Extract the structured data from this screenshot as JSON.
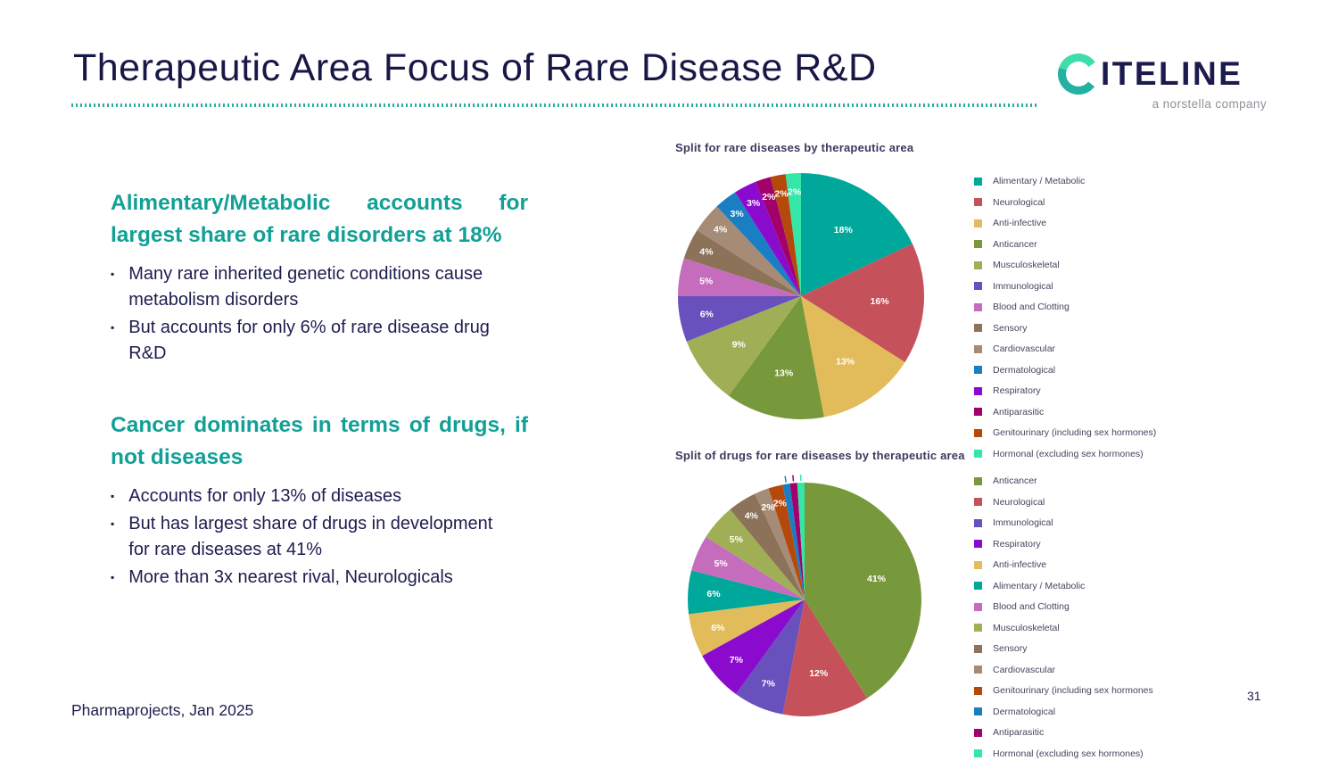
{
  "slide": {
    "title": "Therapeutic Area Focus of Rare Disease R&D",
    "footer_source": "Pharmaprojects, Jan 2025",
    "page_number": "31"
  },
  "logo": {
    "brand_rest": "ITELINE",
    "tagline": "a norstella company"
  },
  "content": {
    "sections": [
      {
        "heading": "Alimentary/Metabolic accounts for largest share of rare disorders at 18%",
        "bullets": [
          "Many rare inherited genetic conditions cause metabolism disorders",
          "But accounts for only 6% of rare disease drug R&D"
        ]
      },
      {
        "heading": "Cancer dominates in terms of drugs, if not diseases",
        "bullets": [
          "Accounts for only 13% of diseases",
          "But has largest share of drugs in development for rare diseases at 41%",
          "More than 3x nearest rival, Neurologicals"
        ]
      }
    ]
  },
  "colors": {
    "title_navy": "#181847",
    "body_navy": "#1d1d4f",
    "heading_teal": "#12a096",
    "divider_teal": "#28ad9f",
    "legend_text": "#45455f"
  },
  "chart_data": [
    {
      "type": "pie",
      "title": "Split for rare diseases by therapeutic area",
      "legend_position": "right",
      "label_min_pct": 2,
      "slices": [
        {
          "label": "Alimentary / Metabolic",
          "value": 18,
          "color": "#00A79B"
        },
        {
          "label": "Neurological",
          "value": 16,
          "color": "#C5525B"
        },
        {
          "label": "Anti-infective",
          "value": 13,
          "color": "#E2BC5B"
        },
        {
          "label": "Anticancer",
          "value": 13,
          "color": "#78993B"
        },
        {
          "label": "Musculoskeletal",
          "value": 9,
          "color": "#A0AF56"
        },
        {
          "label": "Immunological",
          "value": 6,
          "color": "#6851BD"
        },
        {
          "label": "Blood and Clotting",
          "value": 5,
          "color": "#C66CBC"
        },
        {
          "label": "Sensory",
          "value": 4,
          "color": "#8C7258"
        },
        {
          "label": "Cardiovascular",
          "value": 4,
          "color": "#A68C76"
        },
        {
          "label": "Dermatological",
          "value": 3,
          "color": "#1A7EC3"
        },
        {
          "label": "Respiratory",
          "value": 3,
          "color": "#8A0BCE"
        },
        {
          "label": "Antiparasitic",
          "value": 2,
          "color": "#A2006B"
        },
        {
          "label": "Genitourinary (including sex hormones)",
          "value": 2,
          "color": "#B5490B"
        },
        {
          "label": "Hormonal (excluding sex hormones)",
          "value": 2,
          "color": "#35E7A7"
        }
      ]
    },
    {
      "type": "pie",
      "title": "Split of drugs for rare diseases by therapeutic area",
      "legend_position": "right",
      "label_min_pct": 2,
      "slices": [
        {
          "label": "Anticancer",
          "value": 41,
          "color": "#78993B"
        },
        {
          "label": "Neurological",
          "value": 12,
          "color": "#C5525B"
        },
        {
          "label": "Immunological",
          "value": 7,
          "color": "#6851BD"
        },
        {
          "label": "Respiratory",
          "value": 7,
          "color": "#8A0BCE"
        },
        {
          "label": "Anti-infective",
          "value": 6,
          "color": "#E2BC5B"
        },
        {
          "label": "Alimentary / Metabolic",
          "value": 6,
          "color": "#00A79B"
        },
        {
          "label": "Blood and Clotting",
          "value": 5,
          "color": "#C66CBC"
        },
        {
          "label": "Musculoskeletal",
          "value": 5,
          "color": "#A0AF56"
        },
        {
          "label": "Sensory",
          "value": 4,
          "color": "#8C7258"
        },
        {
          "label": "Cardiovascular",
          "value": 2,
          "color": "#A68C76"
        },
        {
          "label": "Genitourinary (including sex hormones",
          "value": 2,
          "color": "#B5490B"
        },
        {
          "label": "Dermatological",
          "value": 1,
          "color": "#1A7EC3"
        },
        {
          "label": "Antiparasitic",
          "value": 1,
          "color": "#A2006B"
        },
        {
          "label": "Hormonal (excluding sex hormones)",
          "value": 1,
          "color": "#35E7A7"
        }
      ]
    }
  ]
}
